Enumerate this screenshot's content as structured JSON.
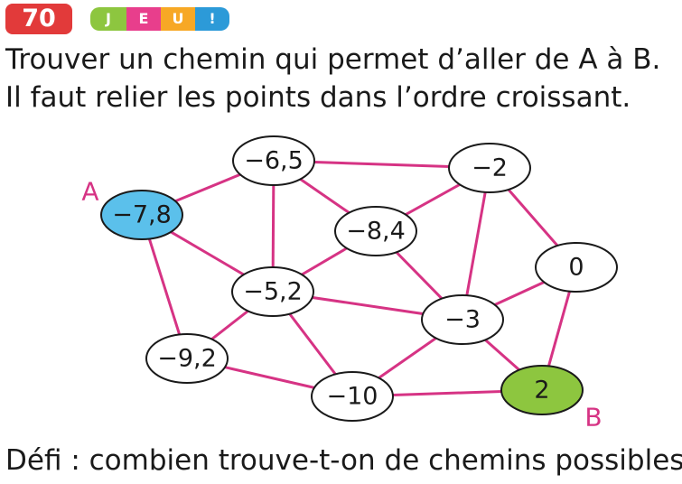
{
  "header": {
    "exercise_number": "70",
    "tag": [
      "J",
      "E",
      "U",
      "!"
    ]
  },
  "instructions": {
    "line1": "Trouver un chemin qui permet d’aller de A à B.",
    "line2": "Il faut relier les points dans l’ordre croissant."
  },
  "graph": {
    "nodes": [
      {
        "id": "n1",
        "label": "−7,8",
        "fill": "#5bc0eb"
      },
      {
        "id": "n2",
        "label": "−6,5",
        "fill": "#ffffff"
      },
      {
        "id": "n3",
        "label": "−2",
        "fill": "#ffffff"
      },
      {
        "id": "n4",
        "label": "−8,4",
        "fill": "#ffffff"
      },
      {
        "id": "n5",
        "label": "0",
        "fill": "#ffffff"
      },
      {
        "id": "n6",
        "label": "−5,2",
        "fill": "#ffffff"
      },
      {
        "id": "n7",
        "label": "−3",
        "fill": "#ffffff"
      },
      {
        "id": "n8",
        "label": "−9,2",
        "fill": "#ffffff"
      },
      {
        "id": "n9",
        "label": "−10",
        "fill": "#ffffff"
      },
      {
        "id": "n10",
        "label": "2",
        "fill": "#8dc63f"
      }
    ],
    "edges": [
      [
        "n1",
        "n2"
      ],
      [
        "n1",
        "n6"
      ],
      [
        "n1",
        "n8"
      ],
      [
        "n2",
        "n3"
      ],
      [
        "n2",
        "n6"
      ],
      [
        "n2",
        "n4"
      ],
      [
        "n3",
        "n4"
      ],
      [
        "n3",
        "n7"
      ],
      [
        "n3",
        "n5"
      ],
      [
        "n4",
        "n6"
      ],
      [
        "n4",
        "n7"
      ],
      [
        "n6",
        "n7"
      ],
      [
        "n6",
        "n8"
      ],
      [
        "n6",
        "n9"
      ],
      [
        "n7",
        "n5"
      ],
      [
        "n7",
        "n9"
      ],
      [
        "n7",
        "n10"
      ],
      [
        "n8",
        "n9"
      ],
      [
        "n9",
        "n10"
      ],
      [
        "n5",
        "n10"
      ]
    ],
    "start_label": "A",
    "end_label": "B",
    "edge_color": "#d63384"
  },
  "challenge": "Défi : combien trouve-t-on de chemins possibles ?"
}
